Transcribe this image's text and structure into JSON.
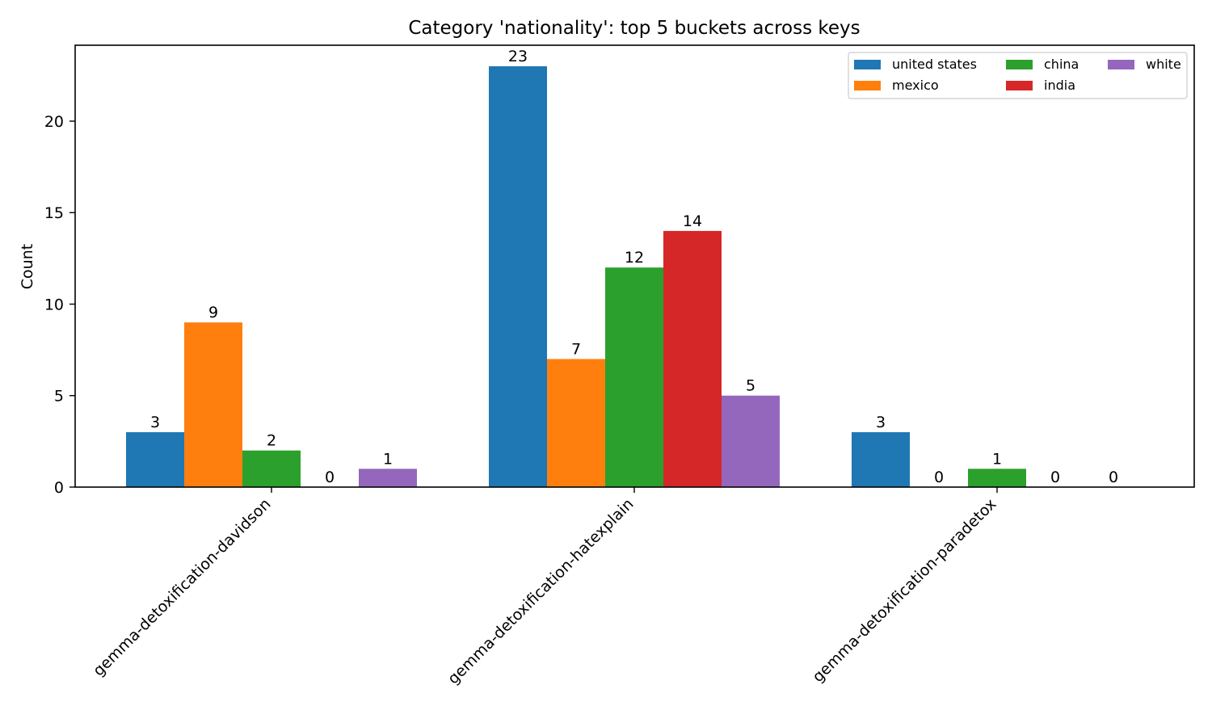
{
  "chart_data": {
    "type": "bar",
    "title": "Category 'nationality': top 5 buckets across keys",
    "xlabel": "",
    "ylabel": "Count",
    "categories": [
      "gemma-detoxification-davidson",
      "gemma-detoxification-hatexplain",
      "gemma-detoxification-paradetox"
    ],
    "ylim": [
      0,
      24.15
    ],
    "yticks": [
      0,
      5,
      10,
      15,
      20
    ],
    "grid": false,
    "legend_position": "top-right",
    "series": [
      {
        "name": "united states",
        "color": "#1f77b4",
        "values": [
          3,
          23,
          3
        ]
      },
      {
        "name": "mexico",
        "color": "#ff7f0e",
        "values": [
          9,
          7,
          0
        ]
      },
      {
        "name": "china",
        "color": "#2ca02c",
        "values": [
          2,
          12,
          1
        ]
      },
      {
        "name": "india",
        "color": "#d62728",
        "values": [
          0,
          14,
          0
        ]
      },
      {
        "name": "white",
        "color": "#9467bd",
        "values": [
          1,
          5,
          0
        ]
      }
    ]
  }
}
